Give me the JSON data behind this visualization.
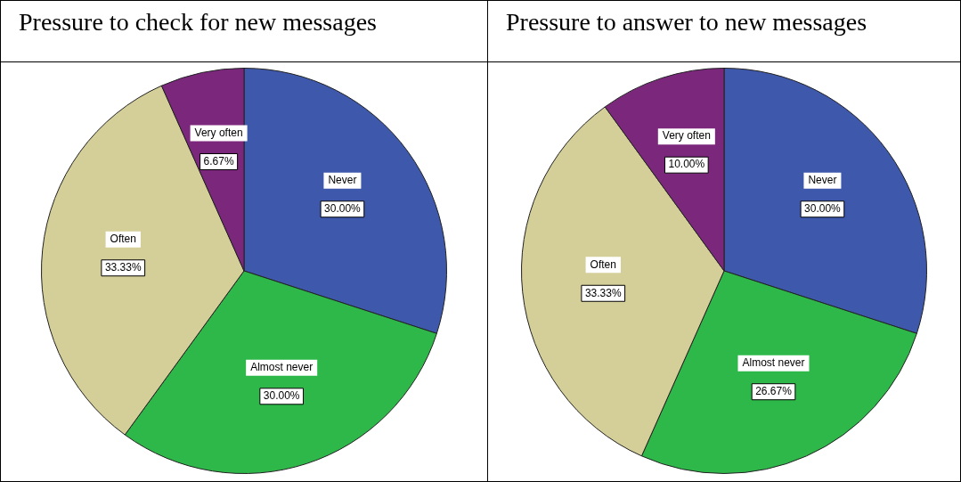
{
  "chart_data": [
    {
      "type": "pie",
      "title": "Pressure to check for new messages",
      "categories": [
        "Never",
        "Almost never",
        "Often",
        "Very often"
      ],
      "values": [
        30,
        30,
        33.33,
        6.67
      ],
      "value_labels": [
        "30.00%",
        "30.00%",
        "33.33%",
        "6.67%"
      ],
      "colors": [
        "#3e58ac",
        "#2fb84a",
        "#d4ce98",
        "#7b277c"
      ],
      "legend": false
    },
    {
      "type": "pie",
      "title": "Pressure to answer to new messages",
      "categories": [
        "Never",
        "Almost never",
        "Often",
        "Very often"
      ],
      "values": [
        30,
        26.67,
        33.33,
        10
      ],
      "value_labels": [
        "30.00%",
        "26.67%",
        "33.33%",
        "10.00%"
      ],
      "colors": [
        "#3e58ac",
        "#2fb84a",
        "#d4ce98",
        "#7b277c"
      ],
      "legend": false
    }
  ]
}
